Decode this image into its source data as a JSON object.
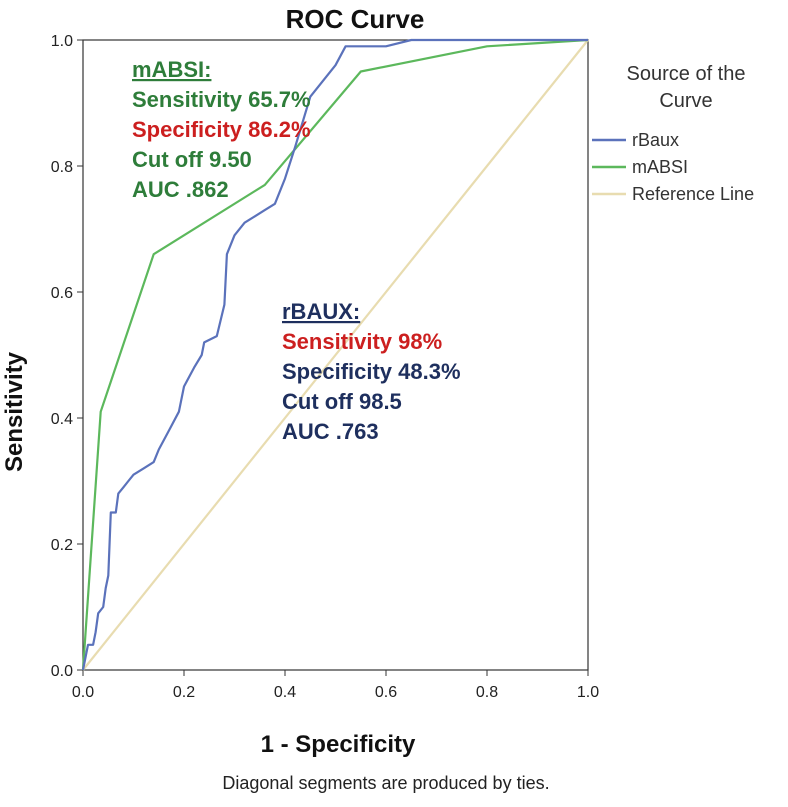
{
  "chart_data": {
    "type": "line",
    "title": "ROC Curve",
    "xlabel": "1 - Specificity",
    "ylabel": "Sensitivity",
    "xlim": [
      0,
      1
    ],
    "ylim": [
      0,
      1
    ],
    "x_ticks": [
      "0.0",
      "0.2",
      "0.4",
      "0.6",
      "0.8",
      "1.0"
    ],
    "y_ticks": [
      "0.0",
      "0.2",
      "0.4",
      "0.6",
      "0.8",
      "1.0"
    ],
    "grid": false,
    "legend": {
      "title": "Source of the Curve",
      "title_lines": [
        "Source of the",
        "Curve"
      ],
      "position": "right",
      "entries": [
        "rBaux",
        "mABSI",
        "Reference Line"
      ]
    },
    "series": [
      {
        "name": "rBaux",
        "color": "#5b72bb",
        "points": [
          [
            0.0,
            0.0
          ],
          [
            0.005,
            0.02
          ],
          [
            0.01,
            0.04
          ],
          [
            0.02,
            0.04
          ],
          [
            0.025,
            0.06
          ],
          [
            0.03,
            0.09
          ],
          [
            0.04,
            0.1
          ],
          [
            0.045,
            0.13
          ],
          [
            0.05,
            0.15
          ],
          [
            0.055,
            0.25
          ],
          [
            0.065,
            0.25
          ],
          [
            0.07,
            0.28
          ],
          [
            0.08,
            0.29
          ],
          [
            0.09,
            0.3
          ],
          [
            0.1,
            0.31
          ],
          [
            0.12,
            0.32
          ],
          [
            0.14,
            0.33
          ],
          [
            0.15,
            0.35
          ],
          [
            0.17,
            0.38
          ],
          [
            0.19,
            0.41
          ],
          [
            0.2,
            0.45
          ],
          [
            0.22,
            0.48
          ],
          [
            0.235,
            0.5
          ],
          [
            0.24,
            0.52
          ],
          [
            0.265,
            0.53
          ],
          [
            0.28,
            0.58
          ],
          [
            0.285,
            0.66
          ],
          [
            0.3,
            0.69
          ],
          [
            0.32,
            0.71
          ],
          [
            0.34,
            0.72
          ],
          [
            0.36,
            0.73
          ],
          [
            0.38,
            0.74
          ],
          [
            0.4,
            0.78
          ],
          [
            0.42,
            0.83
          ],
          [
            0.45,
            0.91
          ],
          [
            0.47,
            0.93
          ],
          [
            0.5,
            0.96
          ],
          [
            0.52,
            0.99
          ],
          [
            0.6,
            0.99
          ],
          [
            0.65,
            1.0
          ],
          [
            1.0,
            1.0
          ]
        ]
      },
      {
        "name": "mABSI",
        "color": "#5cb85c",
        "points": [
          [
            0.0,
            0.0
          ],
          [
            0.035,
            0.41
          ],
          [
            0.14,
            0.66
          ],
          [
            0.36,
            0.77
          ],
          [
            0.55,
            0.95
          ],
          [
            0.8,
            0.99
          ],
          [
            1.0,
            1.0
          ]
        ]
      },
      {
        "name": "Reference Line",
        "color": "#e8dcb0",
        "points": [
          [
            0.0,
            0.0
          ],
          [
            1.0,
            1.0
          ]
        ]
      }
    ],
    "annotations": [
      {
        "heading": "mABSI:",
        "color": "#2e7d3a",
        "lines": [
          {
            "text": "Sensitivity 65.7%",
            "color": "#2e7d3a"
          },
          {
            "text": "Specificity 86.2%",
            "color": "#cc1f1f"
          },
          {
            "text": "Cut off 9.50",
            "color": "#2e7d3a"
          },
          {
            "text": "AUC .862",
            "color": "#2e7d3a"
          }
        ]
      },
      {
        "heading": "rBAUX:",
        "color": "#1e2f5e",
        "lines": [
          {
            "text": "Sensitivity 98%",
            "color": "#cc1f1f"
          },
          {
            "text": "Specificity 48.3%",
            "color": "#1e2f5e"
          },
          {
            "text": "Cut off  98.5",
            "color": "#1e2f5e"
          },
          {
            "text": "AUC .763",
            "color": "#1e2f5e"
          }
        ]
      }
    ],
    "footnote": "Diagonal segments are produced by ties."
  }
}
